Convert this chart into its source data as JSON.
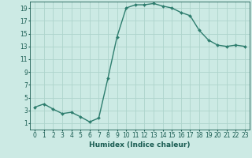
{
  "x": [
    0,
    1,
    2,
    3,
    4,
    5,
    6,
    7,
    8,
    9,
    10,
    11,
    12,
    13,
    14,
    15,
    16,
    17,
    18,
    19,
    20,
    21,
    22,
    23
  ],
  "y": [
    3.5,
    4.0,
    3.2,
    2.5,
    2.7,
    2.0,
    1.2,
    1.8,
    8.0,
    14.5,
    19.0,
    19.5,
    19.5,
    19.7,
    19.3,
    19.0,
    18.3,
    17.8,
    15.5,
    14.0,
    13.2,
    13.0,
    13.2,
    13.0
  ],
  "line_color": "#2e7d6e",
  "marker": "D",
  "marker_size": 2,
  "bg_color": "#cceae4",
  "grid_color": "#add4cc",
  "xlabel": "Humidex (Indice chaleur)",
  "xlim": [
    -0.5,
    23.5
  ],
  "ylim": [
    0,
    20
  ],
  "yticks": [
    1,
    3,
    5,
    7,
    9,
    11,
    13,
    15,
    17,
    19
  ],
  "xticks": [
    0,
    1,
    2,
    3,
    4,
    5,
    6,
    7,
    8,
    9,
    10,
    11,
    12,
    13,
    14,
    15,
    16,
    17,
    18,
    19,
    20,
    21,
    22,
    23
  ],
  "font_color": "#1a5c52",
  "linewidth": 1.0,
  "xlabel_fontsize": 6.5,
  "tick_fontsize": 5.5
}
